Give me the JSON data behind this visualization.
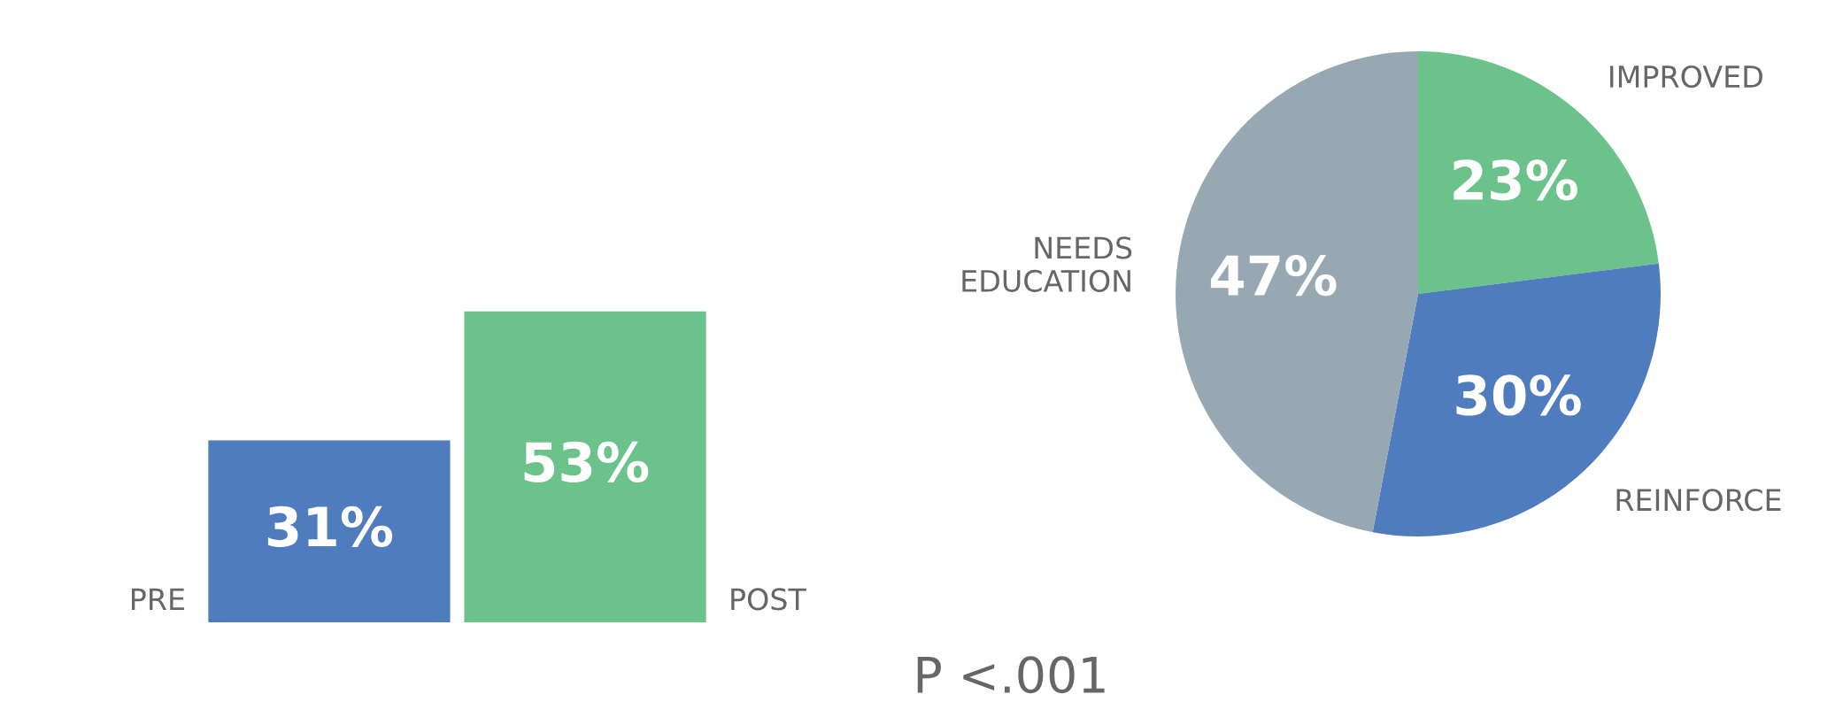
{
  "chart_data": [
    {
      "type": "bar",
      "categories": [
        "PRE",
        "POST"
      ],
      "values": [
        31,
        53
      ],
      "colors": [
        "#4f7bbf",
        "#6bc28a"
      ],
      "value_labels": [
        "31%",
        "53%"
      ],
      "annotations": [
        "P <.001"
      ]
    },
    {
      "type": "pie",
      "categories": [
        "IMPROVED",
        "REINFORCE",
        "NEEDS\nEDUCATION"
      ],
      "values": [
        23,
        30,
        47
      ],
      "colors": [
        "#6bc28a",
        "#4f7bbf",
        "#98a8b2"
      ],
      "value_labels": [
        "23%",
        "30%",
        "47%"
      ]
    }
  ]
}
